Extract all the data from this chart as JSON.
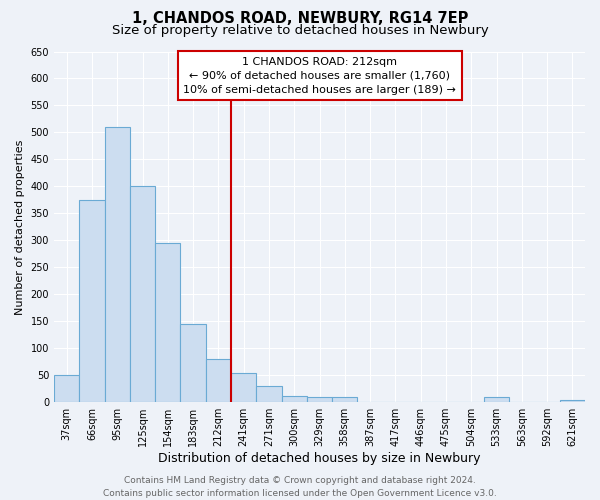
{
  "title": "1, CHANDOS ROAD, NEWBURY, RG14 7EP",
  "subtitle": "Size of property relative to detached houses in Newbury",
  "xlabel": "Distribution of detached houses by size in Newbury",
  "ylabel": "Number of detached properties",
  "categories": [
    "37sqm",
    "66sqm",
    "95sqm",
    "125sqm",
    "154sqm",
    "183sqm",
    "212sqm",
    "241sqm",
    "271sqm",
    "300sqm",
    "329sqm",
    "358sqm",
    "387sqm",
    "417sqm",
    "446sqm",
    "475sqm",
    "504sqm",
    "533sqm",
    "563sqm",
    "592sqm",
    "621sqm"
  ],
  "values": [
    50,
    375,
    510,
    400,
    295,
    145,
    80,
    55,
    30,
    12,
    10,
    10,
    0,
    0,
    0,
    0,
    0,
    10,
    0,
    0,
    5
  ],
  "bar_color": "#ccddf0",
  "bar_edge_color": "#6aaad4",
  "vline_color": "#cc0000",
  "vline_index": 6,
  "annotation_title": "1 CHANDOS ROAD: 212sqm",
  "annotation_line1": "← 90% of detached houses are smaller (1,760)",
  "annotation_line2": "10% of semi-detached houses are larger (189) →",
  "annotation_box_color": "#cc0000",
  "ylim": [
    0,
    650
  ],
  "yticks": [
    0,
    50,
    100,
    150,
    200,
    250,
    300,
    350,
    400,
    450,
    500,
    550,
    600,
    650
  ],
  "footer_line1": "Contains HM Land Registry data © Crown copyright and database right 2024.",
  "footer_line2": "Contains public sector information licensed under the Open Government Licence v3.0.",
  "bg_color": "#eef2f8",
  "plot_bg_color": "#eef2f8",
  "title_fontsize": 10.5,
  "subtitle_fontsize": 9.5,
  "xlabel_fontsize": 9,
  "ylabel_fontsize": 8,
  "tick_fontsize": 7,
  "annotation_fontsize": 8,
  "footer_fontsize": 6.5
}
